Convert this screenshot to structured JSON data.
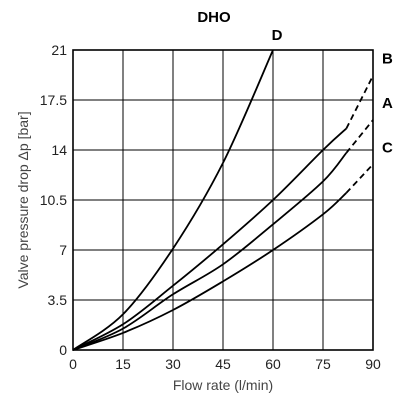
{
  "chart_data": {
    "type": "line",
    "title": "DHO",
    "xlabel": "Flow rate (l/min)",
    "ylabel": "Valve pressure drop Δp [bar]",
    "xlim": [
      0,
      90
    ],
    "ylim": [
      0,
      21
    ],
    "x_ticks": [
      "0",
      "15",
      "30",
      "45",
      "60",
      "75",
      "90"
    ],
    "y_ticks": [
      "0",
      "3.5",
      "7",
      "10.5",
      "14",
      "17.5",
      "21"
    ],
    "grid": true,
    "legend": "none",
    "series": [
      {
        "name": "D",
        "x": [
          0,
          15,
          30,
          45,
          60
        ],
        "y": [
          0,
          2.5,
          7.1,
          13.1,
          21.0
        ],
        "dashed_from_x": null
      },
      {
        "name": "B",
        "x": [
          0,
          15,
          30,
          45,
          60,
          75,
          82,
          90
        ],
        "y": [
          0,
          1.8,
          4.5,
          7.4,
          10.5,
          14.0,
          15.5,
          19.2
        ],
        "dashed_from_x": 82
      },
      {
        "name": "A",
        "x": [
          0,
          15,
          30,
          45,
          60,
          75,
          82,
          90
        ],
        "y": [
          0,
          1.5,
          3.9,
          6.0,
          8.8,
          11.8,
          13.8,
          16.1
        ],
        "dashed_from_x": 82
      },
      {
        "name": "C",
        "x": [
          0,
          15,
          30,
          45,
          60,
          75,
          82,
          90
        ],
        "y": [
          0,
          1.2,
          2.8,
          4.8,
          7.0,
          9.5,
          11.0,
          13.0
        ],
        "dashed_from_x": 82
      }
    ]
  }
}
